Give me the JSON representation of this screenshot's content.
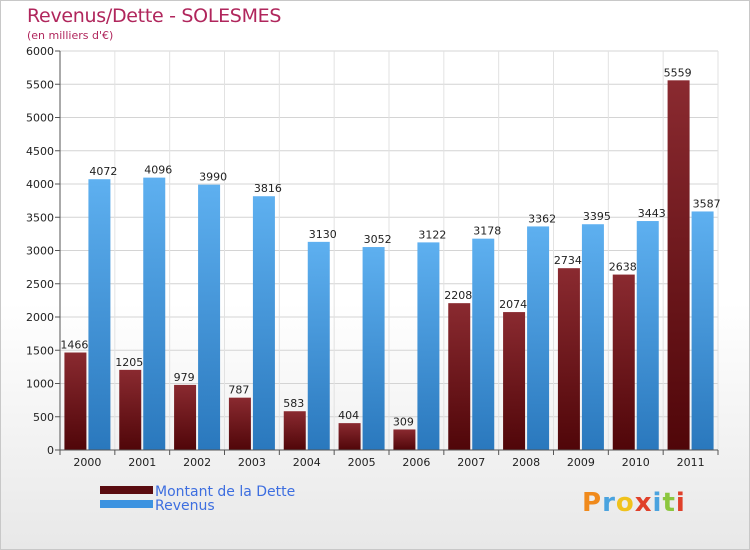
{
  "title": "Revenus/Dette - SOLESMES",
  "subtitle": "(en milliers d'€)",
  "logo_text": "Proxiti",
  "colors": {
    "dette": "#7d1f26",
    "dette_dark": "#4a0508",
    "revenus": "#58a9ec",
    "revenus_dark": "#2f7bc0",
    "title": "#b0265c",
    "legend_text": "#3d6ee0"
  },
  "legend": [
    {
      "label": "Montant de la Dette",
      "color": "#5a0c10"
    },
    {
      "label": "Revenus",
      "color": "#3d93e0"
    }
  ],
  "chart_data": {
    "type": "bar",
    "categories": [
      "2000",
      "2001",
      "2002",
      "2003",
      "2004",
      "2005",
      "2006",
      "2007",
      "2008",
      "2009",
      "2010",
      "2011"
    ],
    "series": [
      {
        "name": "Montant de la Dette",
        "values": [
          1466,
          1205,
          979,
          787,
          583,
          404,
          309,
          2208,
          2074,
          2734,
          2638,
          5559
        ],
        "labels": [
          "1466",
          "1205",
          "979",
          "787",
          "583",
          "404",
          "309",
          "2208",
          "2074",
          "2734",
          "2638",
          "5559"
        ]
      },
      {
        "name": "Revenus",
        "values": [
          4072,
          4096,
          3990,
          3816,
          3130,
          3052,
          3122,
          3178,
          3362,
          3395,
          3443,
          3587
        ],
        "labels": [
          "4072",
          "4096",
          "3990",
          "3816",
          "3130",
          "3052",
          "3122",
          "3178",
          "3362",
          "3395",
          "3443",
          "3587"
        ]
      }
    ],
    "ylim": [
      0,
      6000
    ],
    "yticks": [
      0,
      500,
      1000,
      1500,
      2000,
      2500,
      3000,
      3500,
      4000,
      4500,
      5000,
      5500,
      6000
    ],
    "grid": true
  }
}
